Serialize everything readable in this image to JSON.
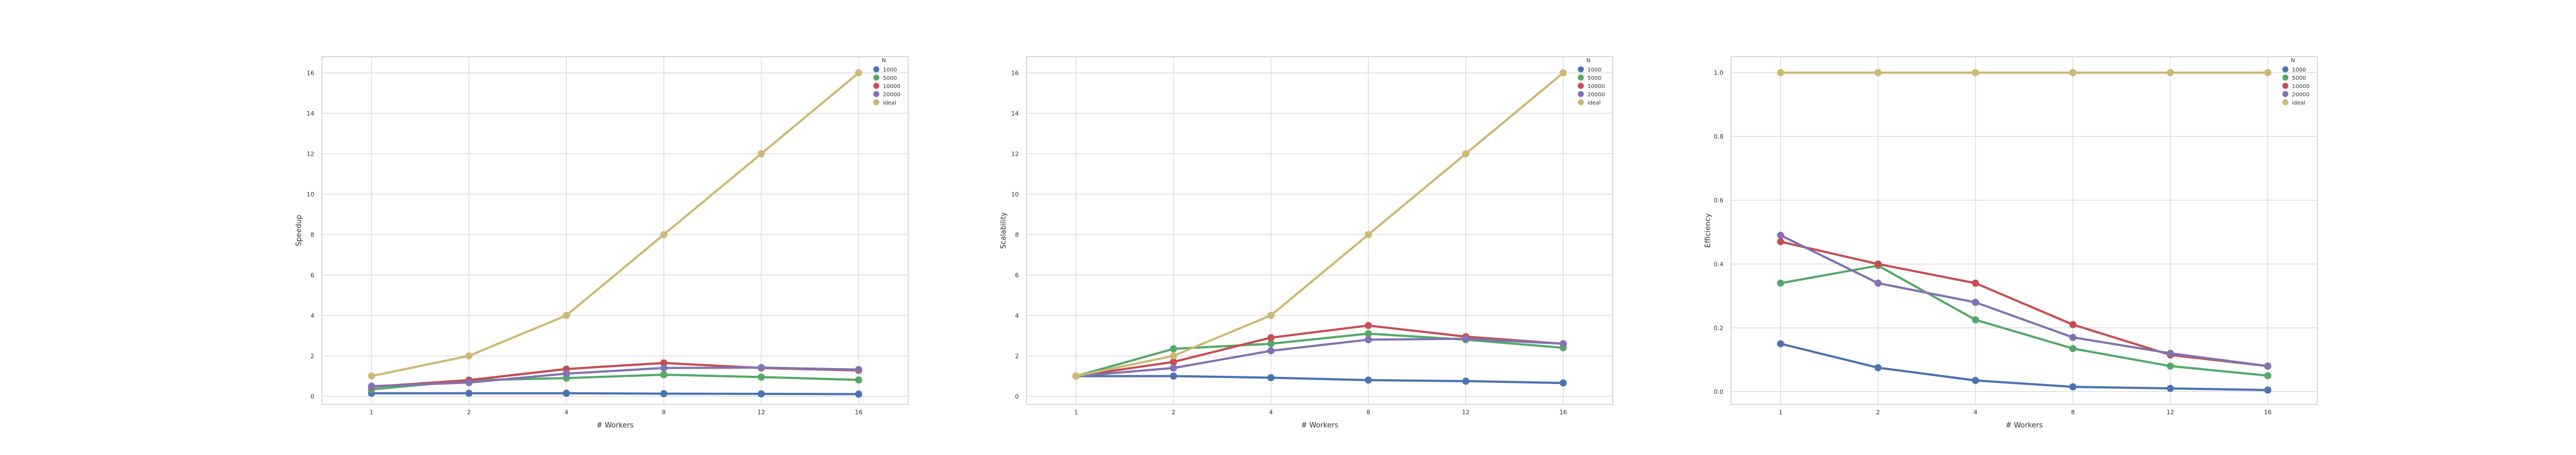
{
  "colors": {
    "1000": "#4c72b0",
    "5000": "#55a868",
    "10000": "#c44e52",
    "20000": "#8172b2",
    "ideal": "#ccb974",
    "background": "#ffffff",
    "grid": "#dddddd",
    "frame": "#cccccc"
  },
  "chart_data": [
    {
      "type": "line",
      "title": "",
      "xlabel": "# Workers",
      "ylabel": "Speedup",
      "categories": [
        "1",
        "2",
        "4",
        "8",
        "12",
        "16"
      ],
      "yticks": [
        "0",
        "2",
        "4",
        "6",
        "8",
        "10",
        "12",
        "14",
        "16"
      ],
      "ylim": [
        -0.4,
        16.8
      ],
      "grid": true,
      "legend_title": "N",
      "legend_position": "top-right",
      "series": [
        {
          "name": "1000",
          "values": [
            0.15,
            0.15,
            0.15,
            0.13,
            0.12,
            0.11
          ]
        },
        {
          "name": "5000",
          "values": [
            0.34,
            0.79,
            0.9,
            1.07,
            0.95,
            0.81
          ]
        },
        {
          "name": "10000",
          "values": [
            0.47,
            0.8,
            1.35,
            1.65,
            1.4,
            1.28
          ]
        },
        {
          "name": "20000",
          "values": [
            0.5,
            0.68,
            1.12,
            1.4,
            1.42,
            1.32
          ]
        },
        {
          "name": "ideal",
          "values": [
            1,
            2,
            4,
            8,
            12,
            16
          ]
        }
      ]
    },
    {
      "type": "line",
      "title": "",
      "xlabel": "# Workers",
      "ylabel": "Scalability",
      "categories": [
        "1",
        "2",
        "4",
        "8",
        "12",
        "16"
      ],
      "yticks": [
        "0",
        "2",
        "4",
        "6",
        "8",
        "10",
        "12",
        "14",
        "16"
      ],
      "ylim": [
        -0.4,
        16.8
      ],
      "grid": true,
      "legend_title": "N",
      "legend_position": "top-right",
      "series": [
        {
          "name": "1000",
          "values": [
            1.0,
            1.0,
            0.92,
            0.8,
            0.75,
            0.66
          ]
        },
        {
          "name": "5000",
          "values": [
            1.0,
            2.35,
            2.6,
            3.1,
            2.8,
            2.4
          ]
        },
        {
          "name": "10000",
          "values": [
            1.0,
            1.7,
            2.9,
            3.5,
            2.95,
            2.6
          ]
        },
        {
          "name": "20000",
          "values": [
            1.0,
            1.4,
            2.25,
            2.8,
            2.85,
            2.6
          ]
        },
        {
          "name": "ideal",
          "values": [
            1,
            2,
            4,
            8,
            12,
            16
          ]
        }
      ]
    },
    {
      "type": "line",
      "title": "",
      "xlabel": "# Workers",
      "ylabel": "Efficiency",
      "categories": [
        "1",
        "2",
        "4",
        "8",
        "12",
        "16"
      ],
      "yticks": [
        "0.0",
        "0.2",
        "0.4",
        "0.6",
        "0.8",
        "1.0"
      ],
      "ylim": [
        -0.04,
        1.05
      ],
      "grid": true,
      "legend_title": "N",
      "legend_position": "top-right",
      "series": [
        {
          "name": "1000",
          "values": [
            0.15,
            0.075,
            0.035,
            0.015,
            0.01,
            0.005
          ]
        },
        {
          "name": "5000",
          "values": [
            0.34,
            0.395,
            0.225,
            0.135,
            0.08,
            0.05
          ]
        },
        {
          "name": "10000",
          "values": [
            0.47,
            0.4,
            0.34,
            0.21,
            0.115,
            0.08
          ]
        },
        {
          "name": "20000",
          "values": [
            0.49,
            0.34,
            0.28,
            0.17,
            0.12,
            0.08
          ]
        },
        {
          "name": "ideal",
          "values": [
            1.0,
            1.0,
            1.0,
            1.0,
            1.0,
            1.0
          ]
        }
      ]
    }
  ]
}
